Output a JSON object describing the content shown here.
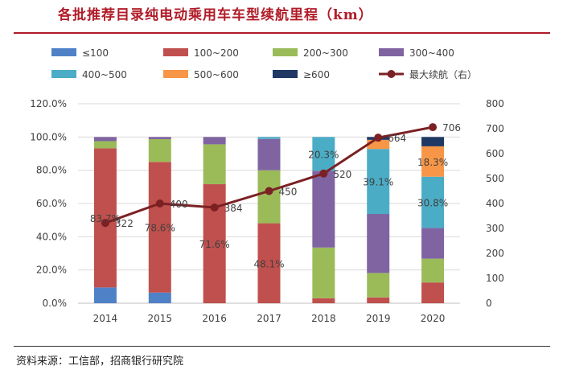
{
  "title": "各批推荐目录纯电动乘用车车型续航里程（km）",
  "source": "资料来源：工信部，招商银行研究院",
  "chart_data": {
    "type": "bar",
    "stacked": true,
    "categories": [
      "2014",
      "2015",
      "2016",
      "2017",
      "2018",
      "2019",
      "2020"
    ],
    "y_left": {
      "ticks": [
        "0.0%",
        "20.0%",
        "40.0%",
        "60.0%",
        "80.0%",
        "100.0%",
        "120.0%"
      ],
      "range": [
        0,
        120
      ]
    },
    "y_right": {
      "ticks": [
        "0",
        "100",
        "200",
        "300",
        "400",
        "500",
        "600",
        "700",
        "800"
      ],
      "range": [
        0,
        800
      ]
    },
    "grid": true,
    "legend_position": "top",
    "series": [
      {
        "name": "≤100",
        "color": "#4f81c7",
        "values": [
          9.5,
          6.4,
          0,
          0,
          0,
          0,
          0
        ]
      },
      {
        "name": "100~200",
        "color": "#c0504d",
        "values": [
          83.7,
          78.6,
          71.6,
          48.1,
          3,
          3.5,
          12.5
        ]
      },
      {
        "name": "200~300",
        "color": "#9bbb59",
        "values": [
          4.3,
          13.7,
          24,
          31.9,
          30.5,
          14.7,
          14.3
        ]
      },
      {
        "name": "300~400",
        "color": "#8064a2",
        "values": [
          2.5,
          1.3,
          4.4,
          18.8,
          46.2,
          35.5,
          18.5
        ]
      },
      {
        "name": "400~500",
        "color": "#4bacc6",
        "values": [
          0,
          0,
          0,
          1.2,
          20.3,
          39.1,
          30.8
        ]
      },
      {
        "name": "500~600",
        "color": "#f79646",
        "values": [
          0,
          0,
          0,
          0,
          0,
          5.5,
          18.3
        ]
      },
      {
        "name": "≥600",
        "color": "#1f3864",
        "values": [
          0,
          0,
          0,
          0,
          0,
          1.7,
          5.6
        ]
      }
    ],
    "line": {
      "name": "最大续航（右）",
      "color": "#7b2124",
      "values": [
        322,
        400,
        384,
        450,
        520,
        664,
        706
      ],
      "labels": [
        "322",
        "400",
        "384",
        "450",
        "520",
        "664",
        "706"
      ]
    },
    "data_labels": [
      {
        "series": "100~200",
        "index": 0,
        "text": "83.7%"
      },
      {
        "series": "100~200",
        "index": 1,
        "text": "78.6%"
      },
      {
        "series": "100~200",
        "index": 2,
        "text": "71.6%"
      },
      {
        "series": "100~200",
        "index": 3,
        "text": "48.1%"
      },
      {
        "series": "400~500",
        "index": 4,
        "text": "20.3%"
      },
      {
        "series": "400~500",
        "index": 5,
        "text": "39.1%"
      },
      {
        "series": "400~500",
        "index": 6,
        "text": "30.8%"
      },
      {
        "series": "500~600",
        "index": 6,
        "text": "18.3%"
      }
    ]
  }
}
